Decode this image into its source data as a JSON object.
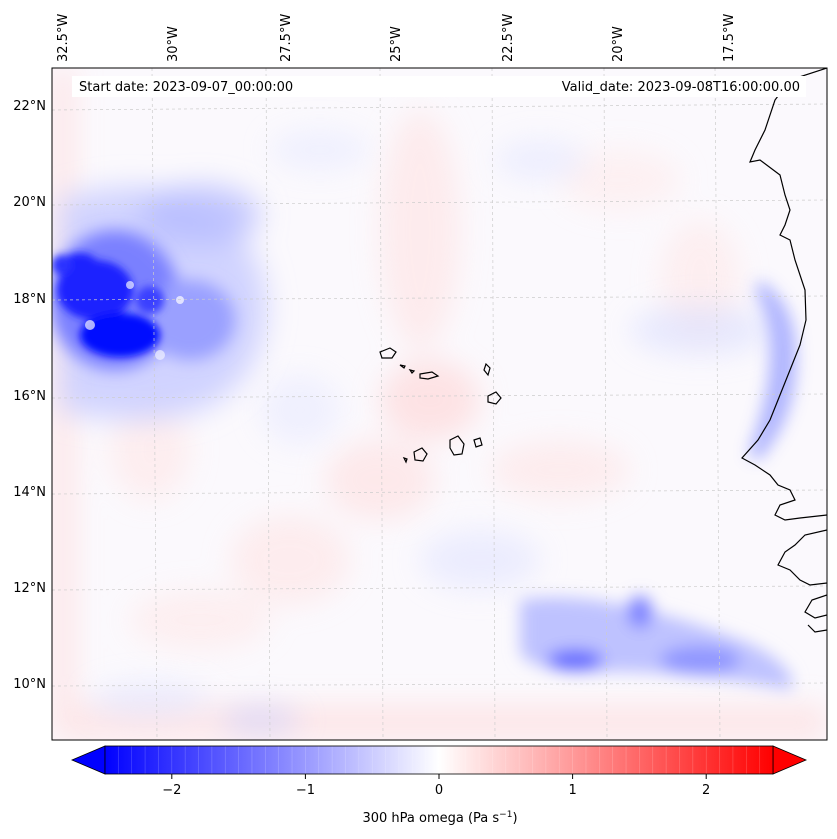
{
  "header": {
    "start_date": "Start date: 2023-09-07_00:00:00",
    "valid_date": "Valid_date: 2023-09-08T16:00:00.00"
  },
  "axes": {
    "lon_labels": [
      "32.5°W",
      "30°W",
      "27.5°W",
      "25°W",
      "22.5°W",
      "20°W",
      "17.5°W"
    ],
    "lat_labels": [
      "22°N",
      "20°N",
      "18°N",
      "16°N",
      "14°N",
      "12°N",
      "10°N"
    ]
  },
  "colorbar": {
    "label": "300 hPa omega (Pa s",
    "label_sup": "−1",
    "label_close": ")",
    "ticks": [
      "−2",
      "−1",
      "0",
      "1",
      "2"
    ],
    "tick_values": [
      -2,
      -1,
      0,
      1,
      2
    ],
    "range": [
      -2.5,
      2.5
    ],
    "cmap": "bwr",
    "colors": {
      "min": "#0000ff",
      "mid": "#ffffff",
      "max": "#ff0000"
    }
  },
  "field": {
    "variable": "omega",
    "level": "300 hPa",
    "features": [
      {
        "name": "strong-ascent-west",
        "lon": -32.0,
        "lat": 17.8,
        "value": -2.5
      },
      {
        "name": "ascent-band-south",
        "lon": -20.5,
        "lat": 10.8,
        "value": -1.2
      }
    ]
  }
}
